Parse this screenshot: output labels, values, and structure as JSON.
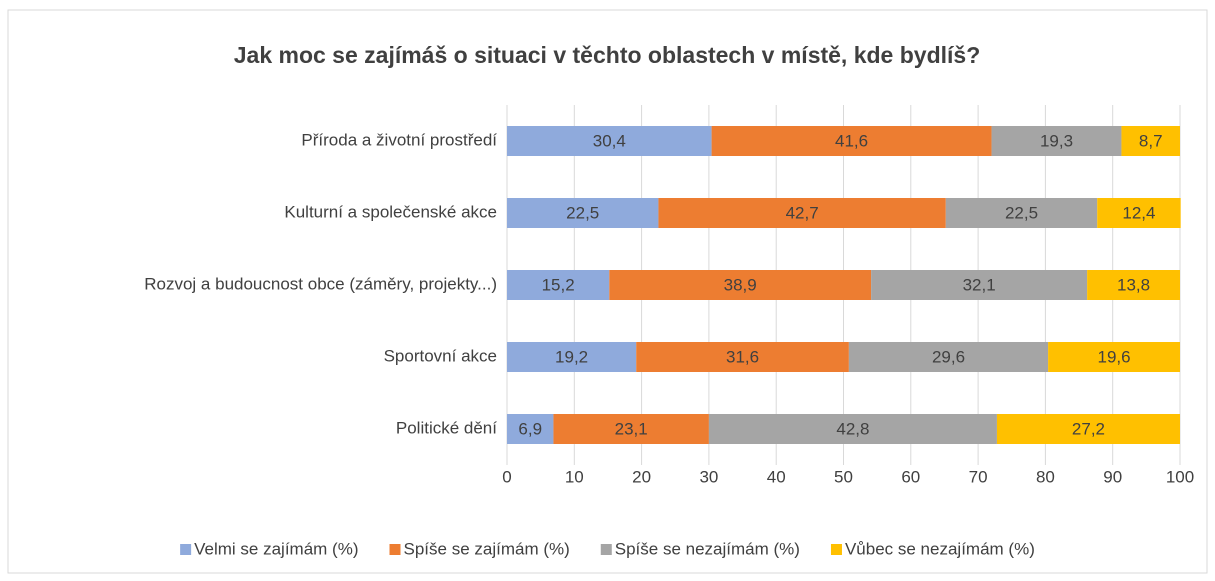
{
  "chart_data": {
    "type": "bar",
    "orientation": "horizontal",
    "stacked": true,
    "title": "Jak moc se zajímáš o situaci v těchto oblastech v místě, kde bydlíš?",
    "categories": [
      "Příroda a životní prostředí",
      "Kulturní a společenské akce",
      "Rozvoj a budoucnost obce (záměry, projekty...)",
      "Sportovní akce",
      "Politické dění"
    ],
    "series": [
      {
        "name": "Velmi se zajímám (%)",
        "color": "#8faadc",
        "values": [
          30.4,
          22.5,
          15.2,
          19.2,
          6.9
        ],
        "value_labels": [
          "30,4",
          "22,5",
          "15,2",
          "19,2",
          "6,9"
        ]
      },
      {
        "name": "Spíše se zajímám (%)",
        "color": "#ed7d31",
        "values": [
          41.6,
          42.7,
          38.9,
          31.6,
          23.1
        ],
        "value_labels": [
          "41,6",
          "42,7",
          "38,9",
          "31,6",
          "23,1"
        ]
      },
      {
        "name": "Spíše se nezajímám (%)",
        "color": "#a5a5a5",
        "values": [
          19.3,
          22.5,
          32.1,
          29.6,
          42.8
        ],
        "value_labels": [
          "19,3",
          "22,5",
          "32,1",
          "29,6",
          "42,8"
        ]
      },
      {
        "name": "Vůbec se nezajímám (%)",
        "color": "#ffc000",
        "values": [
          8.7,
          12.4,
          13.8,
          19.6,
          27.2
        ],
        "value_labels": [
          "8,7",
          "12,4",
          "13,8",
          "19,6",
          "27,2"
        ]
      }
    ],
    "xlim": [
      0,
      100
    ],
    "xticks": [
      0,
      10,
      20,
      30,
      40,
      50,
      60,
      70,
      80,
      90,
      100
    ],
    "grid": true,
    "legend": "bottom"
  }
}
